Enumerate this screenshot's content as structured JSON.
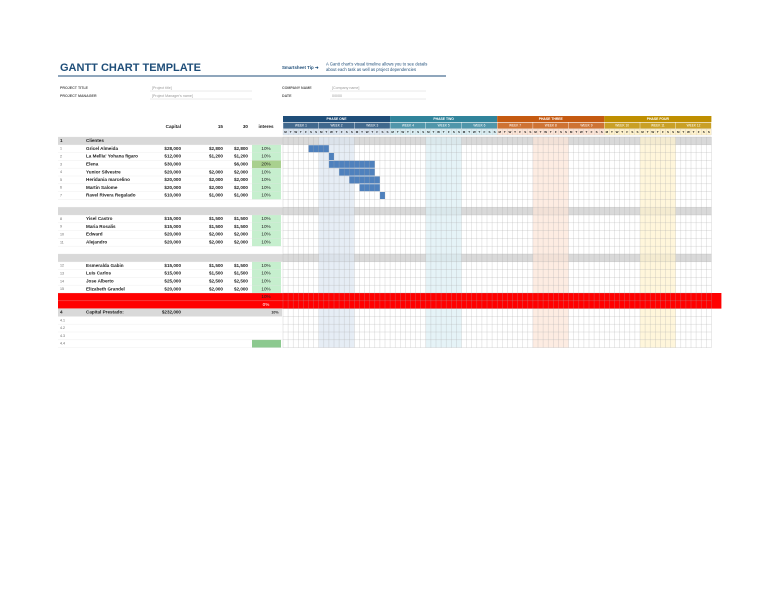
{
  "header": {
    "title": "GANTT CHART TEMPLATE",
    "tip_label": "Smartsheet Tip ➜",
    "tip_text": [
      "A Gantt chart's visual timeline allows you to see details",
      "about each task as well as project dependencies"
    ]
  },
  "project": {
    "title_label": "PROJECT TITLE",
    "title_value": "[Project title]",
    "manager_label": "PROJECT MANAGER",
    "manager_value": "[Project Manager's name]",
    "company_label": "COMPANY NAME",
    "company_value": "[Company name]",
    "date_label": "DATE",
    "date_value": "0/0/00"
  },
  "table": {
    "columns": [
      "Capital",
      "15",
      "30",
      "interes"
    ],
    "phases": [
      {
        "name": "PHASE ONE",
        "weeks": [
          "WEEK 1",
          "WEEK 2",
          "WEEK 3"
        ]
      },
      {
        "name": "PHASE TWO",
        "weeks": [
          "WEEK 4",
          "WEEK 5",
          "WEEK 6"
        ]
      },
      {
        "name": "PHASE THREE",
        "weeks": [
          "WEEK 7",
          "WEEK 8",
          "WEEK 9"
        ]
      },
      {
        "name": "PHASE FOUR",
        "weeks": [
          "WEEK 10",
          "WEEK 11",
          "WEEK 12"
        ]
      }
    ],
    "days": [
      "M",
      "T",
      "W",
      "T",
      "F",
      "S",
      "S"
    ],
    "groups": [
      {
        "number": "1",
        "title": "Clientes",
        "rows": [
          [
            "1",
            "Gricel Almeida",
            "$28,000",
            "$2,800",
            "$2,800",
            "10%"
          ],
          [
            "2",
            "La Mellia' Yohana figaro",
            "$12,000",
            "$1,200",
            "$1,200",
            "10%"
          ],
          [
            "3",
            "Elena",
            "$30,000",
            null,
            "$6,000",
            "20%"
          ],
          [
            "4",
            "Yunior Silvestre",
            "$20,000",
            "$2,000",
            "$2,000",
            "10%"
          ],
          [
            "5",
            "Heridania marcelino",
            "$20,000",
            "$2,000",
            "$2,000",
            "10%"
          ],
          [
            "6",
            "Martin Salome",
            "$20,000",
            "$2,000",
            "$2,000",
            "10%"
          ],
          [
            "7",
            "Ravel Rivera Regalado",
            "$10,000",
            "$1,000",
            "$1,000",
            "10%"
          ]
        ]
      },
      {
        "rows": [
          [
            "8",
            "Yisel Castro",
            "$15,000",
            "$1,500",
            "$1,500",
            "10%"
          ],
          [
            "9",
            "Maria Rosalis",
            "$15,000",
            "$1,500",
            "$1,500",
            "10%"
          ],
          [
            "10",
            "Edward",
            "$20,000",
            "$2,000",
            "$2,000",
            "10%"
          ],
          [
            "11",
            "Alejandro",
            "$20,000",
            "$2,000",
            "$2,000",
            "10%"
          ]
        ]
      },
      {
        "rows": [
          [
            "12",
            "Esmeralda Gabin",
            "$15,000",
            "$1,500",
            "$1,500",
            "10%"
          ],
          [
            "13",
            "Luis Carlos",
            "$15,000",
            "$1,500",
            "$1,500",
            "10%"
          ],
          [
            "14",
            "Jose Alberto",
            "$25,000",
            "$2,500",
            "$2,500",
            "10%"
          ],
          [
            "15",
            "Elizabeth Grandel",
            "$20,000",
            "$2,000",
            "$2,000",
            "10%"
          ]
        ]
      }
    ],
    "red_rows": [
      {
        "interest": "10%"
      },
      {
        "interest": "0%"
      }
    ],
    "summary": {
      "number": "4",
      "label": "Capital Prestado:",
      "capital": "$232,000",
      "interest": "10%"
    },
    "extra_rows": [
      "4.1",
      "4.2",
      "4.3",
      "4.4"
    ]
  }
}
